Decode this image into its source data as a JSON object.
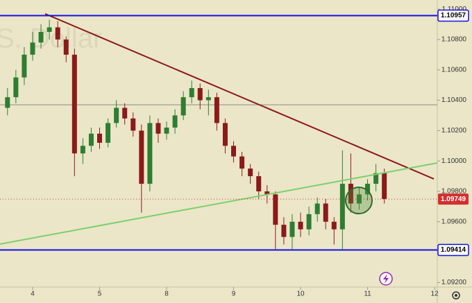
{
  "chart_data": {
    "type": "candlestick",
    "watermark": "S. Dollar",
    "background": "#ebe6c8",
    "up_color": "#2e7d32",
    "down_color": "#8b1a1a",
    "xlim": [
      -0.487,
      6.041
    ],
    "ylim": [
      1.0917,
      1.1106
    ],
    "xticks": [
      {
        "value": 0,
        "label": "4"
      },
      {
        "value": 1,
        "label": "5"
      },
      {
        "value": 2,
        "label": "8"
      },
      {
        "value": 3,
        "label": "9"
      },
      {
        "value": 4,
        "label": "10"
      },
      {
        "value": 5,
        "label": "11"
      },
      {
        "value": 6,
        "label": "12"
      }
    ],
    "yticks": [
      {
        "value": 1.092,
        "label": "1.09200"
      },
      {
        "value": 1.096,
        "label": "1.09600"
      },
      {
        "value": 1.098,
        "label": "1.09800"
      },
      {
        "value": 1.1,
        "label": "1.10000"
      },
      {
        "value": 1.102,
        "label": "1.10200"
      },
      {
        "value": 1.104,
        "label": "1.10400"
      },
      {
        "value": 1.106,
        "label": "1.10600"
      },
      {
        "value": 1.108,
        "label": "1.10800"
      },
      {
        "value": 1.11,
        "label": "1.11000"
      }
    ],
    "x": [
      -0.375,
      -0.25,
      -0.125,
      0,
      0.125,
      0.25,
      0.375,
      0.5,
      0.625,
      0.75,
      0.875,
      1,
      1.125,
      1.25,
      1.375,
      1.5,
      1.625,
      1.75,
      1.875,
      2,
      2.125,
      2.25,
      2.375,
      2.5,
      2.625,
      2.75,
      2.875,
      3,
      3.125,
      3.25,
      3.375,
      3.5,
      3.625,
      3.75,
      3.875,
      4,
      4.125,
      4.25,
      4.375,
      4.5,
      4.625,
      4.75,
      4.875,
      5,
      5.125,
      5.25
    ],
    "open": [
      1.1035,
      1.1042,
      1.1055,
      1.107,
      1.1078,
      1.1085,
      1.1088,
      1.108,
      1.107,
      1.1005,
      1.101,
      1.1018,
      1.1012,
      1.1025,
      1.1035,
      1.1028,
      1.102,
      1.0985,
      1.1025,
      1.1018,
      1.1022,
      1.103,
      1.1042,
      1.1048,
      1.104,
      1.1042,
      1.1025,
      1.101,
      1.1003,
      1.0995,
      1.099,
      1.098,
      1.0978,
      1.0958,
      1.095,
      1.096,
      1.0955,
      1.0965,
      1.0972,
      1.096,
      1.0955,
      1.0985,
      1.0972,
      1.0978,
      1.0985,
      1.0992
    ],
    "high": [
      1.1048,
      1.106,
      1.1075,
      1.1085,
      1.109,
      1.1093,
      1.1092,
      1.1082,
      1.1074,
      1.1015,
      1.1022,
      1.1022,
      1.1028,
      1.104,
      1.1038,
      1.1032,
      1.1024,
      1.103,
      1.1028,
      1.1026,
      1.1034,
      1.1046,
      1.1053,
      1.1051,
      1.1047,
      1.1045,
      1.1028,
      1.1013,
      1.1006,
      1.0998,
      1.0993,
      1.0984,
      1.098,
      1.0963,
      1.0965,
      1.0966,
      1.097,
      1.0976,
      1.0975,
      1.0963,
      1.1007,
      1.1005,
      1.0983,
      1.0988,
      1.0998,
      1.0995
    ],
    "low": [
      1.103,
      1.1038,
      1.105,
      1.1066,
      1.1074,
      1.108,
      1.1075,
      1.1065,
      1.099,
      1.0998,
      1.1006,
      1.1008,
      1.1009,
      1.1022,
      1.1024,
      1.1016,
      1.0966,
      1.098,
      1.1012,
      1.1014,
      1.1018,
      1.1027,
      1.1038,
      1.1034,
      1.103,
      1.102,
      1.1005,
      1.0999,
      1.099,
      1.0985,
      1.0975,
      1.0972,
      1.0942,
      1.0945,
      1.0942,
      1.095,
      1.0951,
      1.096,
      1.0955,
      1.0945,
      1.0942,
      1.0966,
      1.0968,
      1.0974,
      1.098,
      1.0972
    ],
    "close": [
      1.1042,
      1.1055,
      1.107,
      1.1078,
      1.1085,
      1.1088,
      1.108,
      1.107,
      1.1005,
      1.101,
      1.1018,
      1.1012,
      1.1025,
      1.1035,
      1.1028,
      1.102,
      1.0985,
      1.1025,
      1.1018,
      1.1022,
      1.103,
      1.1042,
      1.1048,
      1.104,
      1.1042,
      1.1025,
      1.101,
      1.1003,
      1.0995,
      1.099,
      1.098,
      1.0978,
      1.0958,
      1.095,
      1.096,
      1.0955,
      1.0965,
      1.0972,
      1.096,
      1.0955,
      1.0985,
      1.0972,
      1.0978,
      1.0985,
      1.0992,
      1.0975
    ],
    "levels": [
      {
        "value": 1.10957,
        "color": "#1010e0"
      },
      {
        "value": 1.09414,
        "color": "#1010e0"
      }
    ],
    "plain_level": {
      "value": 1.1037,
      "color": "#888888"
    },
    "price_line": {
      "value": 1.09749,
      "color": "#d32f2f"
    },
    "trendlines": [
      {
        "x": [
          0.187,
          5.99
        ],
        "y": [
          1.10969,
          1.09882
        ],
        "color": "#8b1a1a"
      },
      {
        "x": [
          -0.487,
          6.041
        ],
        "y": [
          1.09453,
          1.09987
        ],
        "color": "#7ccf6e"
      }
    ],
    "circle": {
      "x": 4.87,
      "y": 1.0974,
      "color": "#2e6b2e"
    }
  }
}
